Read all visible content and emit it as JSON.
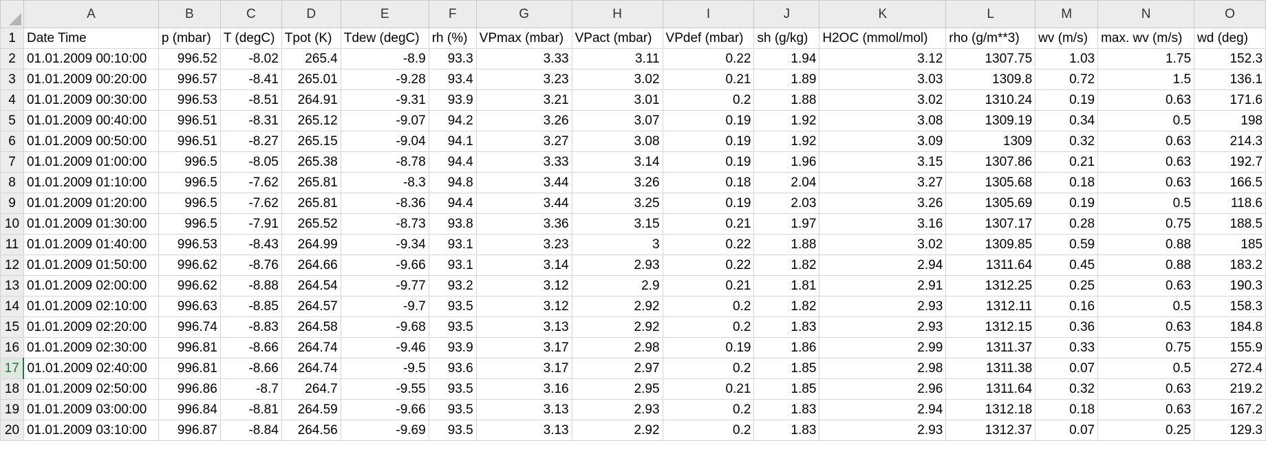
{
  "columns": [
    "A",
    "B",
    "C",
    "D",
    "E",
    "F",
    "G",
    "H",
    "I",
    "J",
    "K",
    "L",
    "M",
    "N",
    "O"
  ],
  "rows": [
    {
      "n": "1",
      "cells": [
        "Date Time",
        "p (mbar)",
        "T (degC)",
        "Tpot (K)",
        "Tdew (degC)",
        "rh (%)",
        "VPmax (mbar)",
        "VPact (mbar)",
        "VPdef (mbar)",
        "sh (g/kg)",
        "H2OC (mmol/mol)",
        "rho (g/m**3)",
        "wv (m/s)",
        "max. wv (m/s)",
        "wd (deg)"
      ]
    },
    {
      "n": "2",
      "cells": [
        "01.01.2009 00:10:00",
        "996.52",
        "-8.02",
        "265.4",
        "-8.9",
        "93.3",
        "3.33",
        "3.11",
        "0.22",
        "1.94",
        "3.12",
        "1307.75",
        "1.03",
        "1.75",
        "152.3"
      ]
    },
    {
      "n": "3",
      "cells": [
        "01.01.2009 00:20:00",
        "996.57",
        "-8.41",
        "265.01",
        "-9.28",
        "93.4",
        "3.23",
        "3.02",
        "0.21",
        "1.89",
        "3.03",
        "1309.8",
        "0.72",
        "1.5",
        "136.1"
      ]
    },
    {
      "n": "4",
      "cells": [
        "01.01.2009 00:30:00",
        "996.53",
        "-8.51",
        "264.91",
        "-9.31",
        "93.9",
        "3.21",
        "3.01",
        "0.2",
        "1.88",
        "3.02",
        "1310.24",
        "0.19",
        "0.63",
        "171.6"
      ]
    },
    {
      "n": "5",
      "cells": [
        "01.01.2009 00:40:00",
        "996.51",
        "-8.31",
        "265.12",
        "-9.07",
        "94.2",
        "3.26",
        "3.07",
        "0.19",
        "1.92",
        "3.08",
        "1309.19",
        "0.34",
        "0.5",
        "198"
      ]
    },
    {
      "n": "6",
      "cells": [
        "01.01.2009 00:50:00",
        "996.51",
        "-8.27",
        "265.15",
        "-9.04",
        "94.1",
        "3.27",
        "3.08",
        "0.19",
        "1.92",
        "3.09",
        "1309",
        "0.32",
        "0.63",
        "214.3"
      ]
    },
    {
      "n": "7",
      "cells": [
        "01.01.2009 01:00:00",
        "996.5",
        "-8.05",
        "265.38",
        "-8.78",
        "94.4",
        "3.33",
        "3.14",
        "0.19",
        "1.96",
        "3.15",
        "1307.86",
        "0.21",
        "0.63",
        "192.7"
      ]
    },
    {
      "n": "8",
      "cells": [
        "01.01.2009 01:10:00",
        "996.5",
        "-7.62",
        "265.81",
        "-8.3",
        "94.8",
        "3.44",
        "3.26",
        "0.18",
        "2.04",
        "3.27",
        "1305.68",
        "0.18",
        "0.63",
        "166.5"
      ]
    },
    {
      "n": "9",
      "cells": [
        "01.01.2009 01:20:00",
        "996.5",
        "-7.62",
        "265.81",
        "-8.36",
        "94.4",
        "3.44",
        "3.25",
        "0.19",
        "2.03",
        "3.26",
        "1305.69",
        "0.19",
        "0.5",
        "118.6"
      ]
    },
    {
      "n": "10",
      "cells": [
        "01.01.2009 01:30:00",
        "996.5",
        "-7.91",
        "265.52",
        "-8.73",
        "93.8",
        "3.36",
        "3.15",
        "0.21",
        "1.97",
        "3.16",
        "1307.17",
        "0.28",
        "0.75",
        "188.5"
      ]
    },
    {
      "n": "11",
      "cells": [
        "01.01.2009 01:40:00",
        "996.53",
        "-8.43",
        "264.99",
        "-9.34",
        "93.1",
        "3.23",
        "3",
        "0.22",
        "1.88",
        "3.02",
        "1309.85",
        "0.59",
        "0.88",
        "185"
      ]
    },
    {
      "n": "12",
      "cells": [
        "01.01.2009 01:50:00",
        "996.62",
        "-8.76",
        "264.66",
        "-9.66",
        "93.1",
        "3.14",
        "2.93",
        "0.22",
        "1.82",
        "2.94",
        "1311.64",
        "0.45",
        "0.88",
        "183.2"
      ]
    },
    {
      "n": "13",
      "cells": [
        "01.01.2009 02:00:00",
        "996.62",
        "-8.88",
        "264.54",
        "-9.77",
        "93.2",
        "3.12",
        "2.9",
        "0.21",
        "1.81",
        "2.91",
        "1312.25",
        "0.25",
        "0.63",
        "190.3"
      ]
    },
    {
      "n": "14",
      "cells": [
        "01.01.2009 02:10:00",
        "996.63",
        "-8.85",
        "264.57",
        "-9.7",
        "93.5",
        "3.12",
        "2.92",
        "0.2",
        "1.82",
        "2.93",
        "1312.11",
        "0.16",
        "0.5",
        "158.3"
      ]
    },
    {
      "n": "15",
      "cells": [
        "01.01.2009 02:20:00",
        "996.74",
        "-8.83",
        "264.58",
        "-9.68",
        "93.5",
        "3.13",
        "2.92",
        "0.2",
        "1.83",
        "2.93",
        "1312.15",
        "0.36",
        "0.63",
        "184.8"
      ]
    },
    {
      "n": "16",
      "cells": [
        "01.01.2009 02:30:00",
        "996.81",
        "-8.66",
        "264.74",
        "-9.46",
        "93.9",
        "3.17",
        "2.98",
        "0.19",
        "1.86",
        "2.99",
        "1311.37",
        "0.33",
        "0.75",
        "155.9"
      ]
    },
    {
      "n": "17",
      "cells": [
        "01.01.2009 02:40:00",
        "996.81",
        "-8.66",
        "264.74",
        "-9.5",
        "93.6",
        "3.17",
        "2.97",
        "0.2",
        "1.85",
        "2.98",
        "1311.38",
        "0.07",
        "0.5",
        "272.4"
      ]
    },
    {
      "n": "18",
      "cells": [
        "01.01.2009 02:50:00",
        "996.86",
        "-8.7",
        "264.7",
        "-9.55",
        "93.5",
        "3.16",
        "2.95",
        "0.21",
        "1.85",
        "2.96",
        "1311.64",
        "0.32",
        "0.63",
        "219.2"
      ]
    },
    {
      "n": "19",
      "cells": [
        "01.01.2009 03:00:00",
        "996.84",
        "-8.81",
        "264.59",
        "-9.66",
        "93.5",
        "3.13",
        "2.93",
        "0.2",
        "1.83",
        "2.94",
        "1312.18",
        "0.18",
        "0.63",
        "167.2"
      ]
    },
    {
      "n": "20",
      "cells": [
        "01.01.2009 03:10:00",
        "996.87",
        "-8.84",
        "264.56",
        "-9.69",
        "93.5",
        "3.13",
        "2.92",
        "0.2",
        "1.83",
        "2.93",
        "1312.37",
        "0.07",
        "0.25",
        "129.3"
      ]
    }
  ]
}
